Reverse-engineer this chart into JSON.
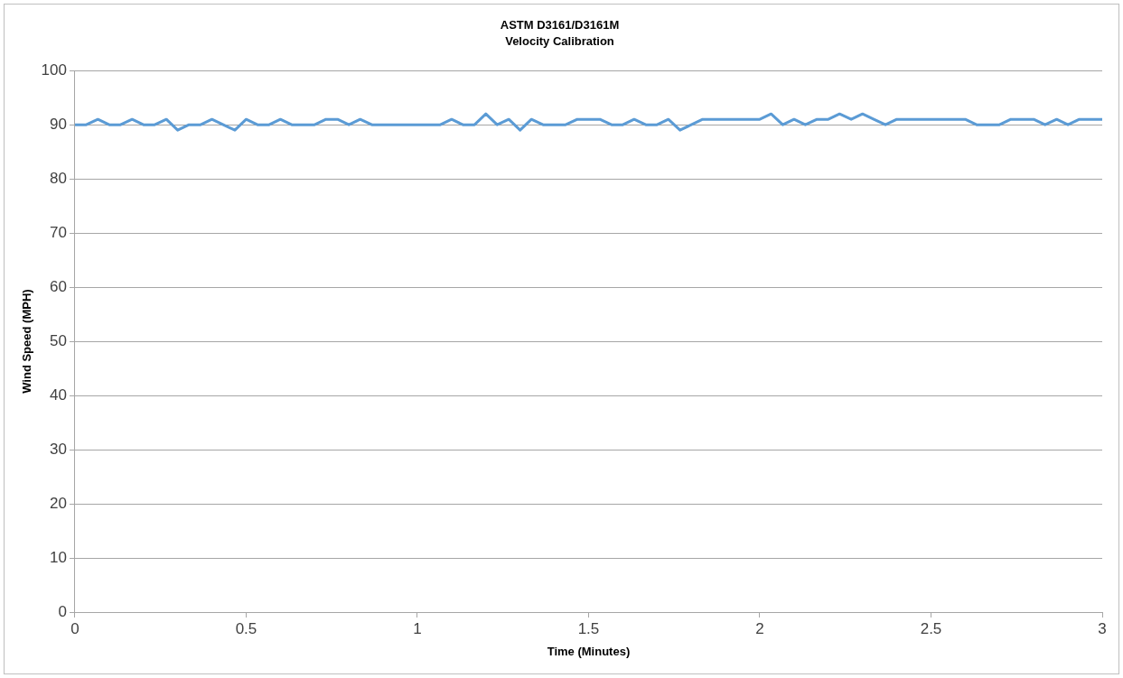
{
  "chart_data": {
    "type": "line",
    "title": "ASTM D3161/D3161M",
    "subtitle": "Velocity Calibration",
    "xlabel": "Time (Minutes)",
    "ylabel": "Wind Speed (MPH)",
    "xlim": [
      0,
      3
    ],
    "xticks": [
      0,
      0.5,
      1,
      1.5,
      2,
      2.5,
      3
    ],
    "ylim": [
      0,
      100
    ],
    "yticks": [
      0,
      10,
      20,
      30,
      40,
      50,
      60,
      70,
      80,
      90,
      100
    ],
    "grid": "y",
    "legend": false,
    "marker": "none",
    "line_style": "solid",
    "series": [
      {
        "color": "#5b9bd5",
        "x": [
          0,
          0.033,
          0.067,
          0.1,
          0.133,
          0.167,
          0.2,
          0.233,
          0.267,
          0.3,
          0.333,
          0.367,
          0.4,
          0.433,
          0.467,
          0.5,
          0.533,
          0.567,
          0.6,
          0.633,
          0.667,
          0.7,
          0.733,
          0.767,
          0.8,
          0.833,
          0.867,
          0.9,
          0.933,
          0.967,
          1,
          1.033,
          1.067,
          1.1,
          1.133,
          1.167,
          1.2,
          1.233,
          1.267,
          1.3,
          1.333,
          1.367,
          1.4,
          1.433,
          1.467,
          1.5,
          1.533,
          1.567,
          1.6,
          1.633,
          1.667,
          1.7,
          1.733,
          1.767,
          1.8,
          1.833,
          1.867,
          1.9,
          1.933,
          1.967,
          2,
          2.033,
          2.067,
          2.1,
          2.133,
          2.167,
          2.2,
          2.233,
          2.267,
          2.3,
          2.333,
          2.367,
          2.4,
          2.433,
          2.467,
          2.5,
          2.533,
          2.567,
          2.6,
          2.633,
          2.667,
          2.7,
          2.733,
          2.767,
          2.8,
          2.833,
          2.867,
          2.9,
          2.933,
          2.967,
          3
        ],
        "values": [
          90,
          90,
          91,
          90,
          90,
          91,
          90,
          90,
          91,
          89,
          90,
          90,
          91,
          90,
          89,
          91,
          90,
          90,
          91,
          90,
          90,
          90,
          91,
          91,
          90,
          91,
          90,
          90,
          90,
          90,
          90,
          90,
          90,
          91,
          90,
          90,
          92,
          90,
          91,
          89,
          91,
          90,
          90,
          90,
          91,
          91,
          91,
          90,
          90,
          91,
          90,
          90,
          91,
          89,
          90,
          91,
          91,
          91,
          91,
          91,
          91,
          92,
          90,
          91,
          90,
          91,
          91,
          92,
          91,
          92,
          91,
          90,
          91,
          91,
          91,
          91,
          91,
          91,
          91,
          90,
          90,
          90,
          91,
          91,
          91,
          90,
          91,
          90,
          91,
          91,
          91
        ]
      }
    ]
  }
}
